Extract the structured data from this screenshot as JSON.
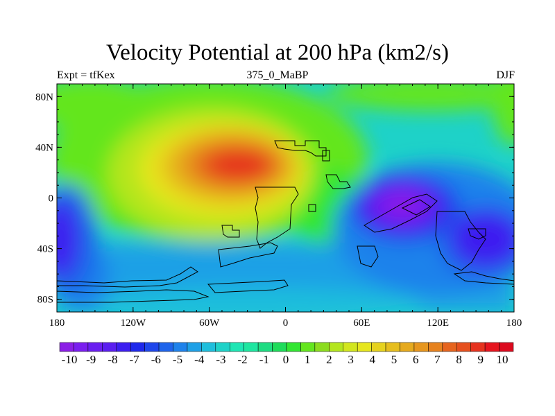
{
  "header": {
    "title": "Velocity Potential at 200 hPa (km2/s)",
    "left_label": "Expt = tfKex",
    "center_label": "375_0_MaBP",
    "right_label": "DJF"
  },
  "chart_data": {
    "type": "heatmap",
    "title": "Velocity Potential at 200 hPa (km2/s)",
    "x_ticks": [
      "180",
      "120W",
      "60W",
      "0",
      "60E",
      "120E",
      "180"
    ],
    "y_ticks": [
      "80N",
      "40N",
      "0",
      "40S",
      "80S"
    ],
    "xlim": [
      -180,
      180
    ],
    "ylim": [
      -90,
      90
    ],
    "colorbar": {
      "labels": [
        "-10",
        "-9",
        "-8",
        "-7",
        "-6",
        "-5",
        "-4",
        "-3",
        "-2",
        "-1",
        "0",
        "1",
        "2",
        "3",
        "4",
        "5",
        "6",
        "7",
        "8",
        "9",
        "10"
      ],
      "colors": [
        "#8b1ee6",
        "#7a1eef",
        "#6a1ef0",
        "#5a1ef0",
        "#3c1ef0",
        "#1e28eb",
        "#1e46eb",
        "#1e64eb",
        "#1e82eb",
        "#1ea0e6",
        "#1ebedc",
        "#1ed2c8",
        "#1ee6b4",
        "#1ee6a0",
        "#1edc82",
        "#1edc5a",
        "#32e632",
        "#64e61e",
        "#8cdc1e",
        "#b4e61e",
        "#d2e61e",
        "#e6e61e",
        "#e6d21e",
        "#e6be1e",
        "#e6aa1e",
        "#e6961e",
        "#e6821e",
        "#e6641e",
        "#e6501e",
        "#e6321e",
        "#e6141e",
        "#dc0a1e"
      ]
    },
    "extrema": [
      {
        "label": "max",
        "lon": -32,
        "lat": 22,
        "value": 10
      },
      {
        "label": "min",
        "lon": 88,
        "lat": -5,
        "value": -10
      },
      {
        "label": "min",
        "lon": 155,
        "lat": -40,
        "value": -7
      },
      {
        "label": "min",
        "lon": -180,
        "lat": -35,
        "value": -6
      }
    ]
  }
}
